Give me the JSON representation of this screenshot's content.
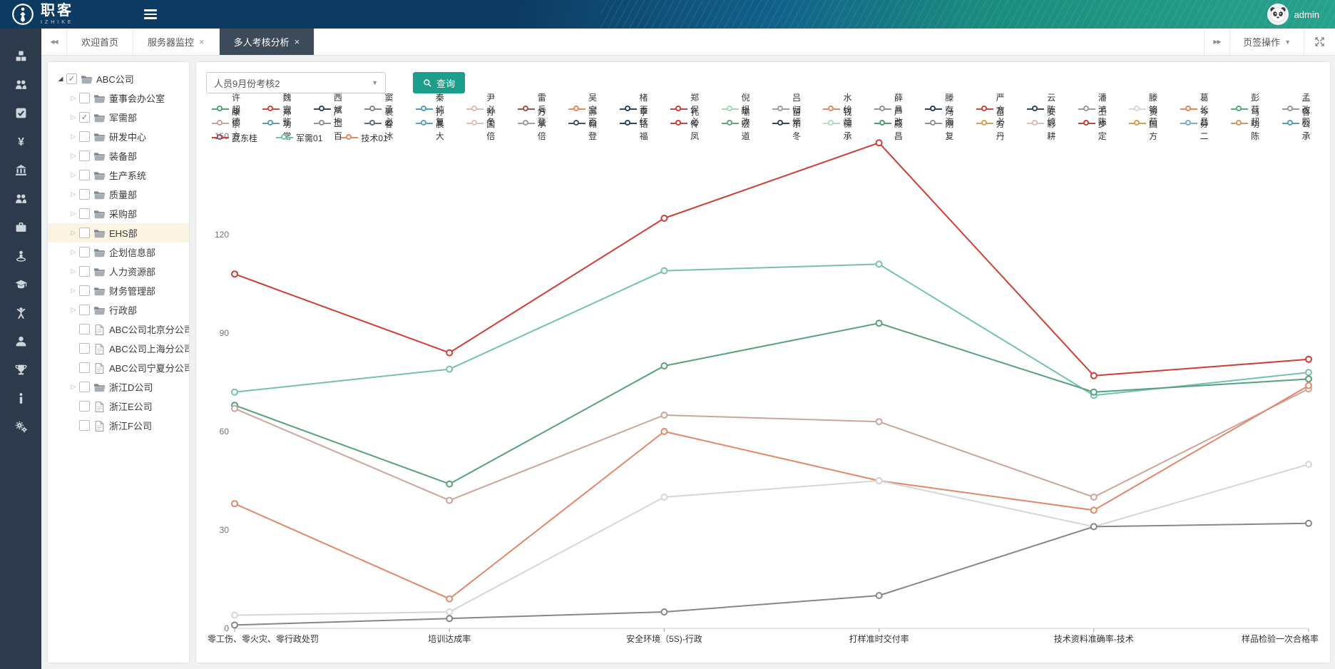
{
  "topbar": {
    "logo_text": "职客",
    "logo_subtext": "IZHIKE",
    "user": "admin"
  },
  "tabbar": {
    "tabs": [
      {
        "label": "欢迎首页",
        "closable": false,
        "active": false
      },
      {
        "label": "服务器监控",
        "closable": true,
        "active": false
      },
      {
        "label": "多人考核分析",
        "closable": true,
        "active": true
      }
    ],
    "actions_label": "页签操作"
  },
  "sidebar": {
    "icons": [
      "cubes",
      "team",
      "check-square",
      "currency-yen",
      "bank",
      "group",
      "briefcase",
      "street-view",
      "graduation-cap",
      "cheer-person",
      "user",
      "trophy",
      "info",
      "gears"
    ]
  },
  "tree": {
    "items": [
      {
        "label": "ABC公司",
        "type": "folder",
        "level": 0,
        "expander": "open",
        "checked": true,
        "highlighted": false
      },
      {
        "label": "董事会办公室",
        "type": "folder",
        "level": 1,
        "expander": "closed",
        "checked": false,
        "highlighted": false
      },
      {
        "label": "军需部",
        "type": "folder",
        "level": 1,
        "expander": "closed",
        "checked": true,
        "highlighted": false
      },
      {
        "label": "研发中心",
        "type": "folder",
        "level": 1,
        "expander": "closed",
        "checked": false,
        "highlighted": false
      },
      {
        "label": "装备部",
        "type": "folder",
        "level": 1,
        "expander": "closed",
        "checked": false,
        "highlighted": false
      },
      {
        "label": "生产系统",
        "type": "folder",
        "level": 1,
        "expander": "closed",
        "checked": false,
        "highlighted": false
      },
      {
        "label": "质量部",
        "type": "folder",
        "level": 1,
        "expander": "closed",
        "checked": false,
        "highlighted": false
      },
      {
        "label": "采购部",
        "type": "folder",
        "level": 1,
        "expander": "closed",
        "checked": false,
        "highlighted": false
      },
      {
        "label": "EHS部",
        "type": "folder",
        "level": 1,
        "expander": "closed",
        "checked": false,
        "highlighted": true
      },
      {
        "label": "企划信息部",
        "type": "folder",
        "level": 1,
        "expander": "closed",
        "checked": false,
        "highlighted": false
      },
      {
        "label": "人力资源部",
        "type": "folder",
        "level": 1,
        "expander": "closed",
        "checked": false,
        "highlighted": false
      },
      {
        "label": "财务管理部",
        "type": "folder",
        "level": 1,
        "expander": "closed",
        "checked": false,
        "highlighted": false
      },
      {
        "label": "行政部",
        "type": "folder",
        "level": 1,
        "expander": "closed",
        "checked": false,
        "highlighted": false
      },
      {
        "label": "ABC公司北京分公司",
        "type": "file",
        "level": 1,
        "expander": "none",
        "checked": false,
        "highlighted": false
      },
      {
        "label": "ABC公司上海分公司",
        "type": "file",
        "level": 1,
        "expander": "none",
        "checked": false,
        "highlighted": false
      },
      {
        "label": "ABC公司宁夏分公司",
        "type": "file",
        "level": 1,
        "expander": "none",
        "checked": false,
        "highlighted": false
      },
      {
        "label": "浙江D公司",
        "type": "folder",
        "level": 1,
        "expander": "closed",
        "checked": false,
        "highlighted": false
      },
      {
        "label": "浙江E公司",
        "type": "file",
        "level": 1,
        "expander": "none",
        "checked": false,
        "highlighted": false
      },
      {
        "label": "浙江F公司",
        "type": "file",
        "level": 1,
        "expander": "none",
        "checked": false,
        "highlighted": false
      }
    ]
  },
  "toolbar": {
    "select_value": "人员9月份考核2",
    "query_label": "查询"
  },
  "chart_data": {
    "type": "line",
    "categories": [
      "零工伤、零火灾、零行政处罚",
      "培训达成率",
      "安全环境（5S)-行政",
      "打样准时交付率",
      "技术资料准确率-技术",
      "样品检验一次合格率"
    ],
    "yticks": [
      0,
      30,
      60,
      90,
      120,
      150
    ],
    "ylim": [
      0,
      150
    ],
    "grid": false,
    "legend_position": "top",
    "legend_rows": [
      [
        {
          "name": "许超德",
          "color": "#55a178"
        },
        {
          "name": "魏富鉴",
          "color": "#c94a43"
        },
        {
          "name": "西斌抱",
          "color": "#31495c"
        },
        {
          "name": "窦承必",
          "color": "#83878d"
        },
        {
          "name": "秦纯复",
          "color": "#4f9fae"
        },
        {
          "name": "尹必冬",
          "color": "#dcbcb4"
        },
        {
          "name": "雷兵登",
          "color": "#a2544e"
        },
        {
          "name": "吴宝百",
          "color": "#e08a62"
        },
        {
          "name": "楮百红",
          "color": "#33495e"
        },
        {
          "name": "郑保必",
          "color": "#c9413a"
        },
        {
          "name": "倪根改",
          "color": "#a8d5b5"
        },
        {
          "name": "吕归炳",
          "color": "#9b9fa4"
        },
        {
          "name": "水纷炳",
          "color": "#e28a66"
        },
        {
          "name": "薛昌改",
          "color": "#8f949a"
        },
        {
          "name": "滕存海",
          "color": "#2e4457"
        },
        {
          "name": "严方必",
          "color": "#cc4540"
        },
        {
          "name": "云陈纯",
          "color": "#304a5e"
        },
        {
          "name": "潘鸿陈",
          "color": "#989da2"
        },
        {
          "name": "滕铬荷",
          "color": "#d3d7da"
        },
        {
          "name": "葛长昌",
          "color": "#e0885a"
        },
        {
          "name": "彭荷超",
          "color": "#5ea87f"
        },
        {
          "name": "孟改殿",
          "color": "#94999f"
        }
      ],
      [
        {
          "name": "康崇方",
          "color": "#cca59a"
        },
        {
          "name": "郑功常",
          "color": "#54a3ad"
        },
        {
          "name": "严二百",
          "color": "#90959b"
        },
        {
          "name": "袁春冰",
          "color": "#5c6e80"
        },
        {
          "name": "孙晨大",
          "color": "#57a6b0"
        },
        {
          "name": "孙国倍",
          "color": "#dec1b9"
        },
        {
          "name": "方承倍",
          "color": "#9ba0a5"
        },
        {
          "name": "郝翰登",
          "color": "#3e5468"
        },
        {
          "name": "李铬福",
          "color": "#2f4759"
        },
        {
          "name": "孔传凤",
          "color": "#cb433c"
        },
        {
          "name": "喻宏道",
          "color": "#5fa97e"
        },
        {
          "name": "苗东冬",
          "color": "#32495c"
        },
        {
          "name": "钱保承",
          "color": "#b5dcc3"
        },
        {
          "name": "严殿昌",
          "color": "#4f9b72"
        },
        {
          "name": "冯刚复",
          "color": "#8e9399"
        },
        {
          "name": "苗方丹",
          "color": "#dda049"
        },
        {
          "name": "安彩耕",
          "color": "#ddc0b8"
        },
        {
          "name": "王步定",
          "color": "#c84039"
        },
        {
          "name": "贺国方",
          "color": "#dd9d47"
        },
        {
          "name": "岑芬二",
          "color": "#6fb3bd"
        },
        {
          "name": "马功陈",
          "color": "#e0925d"
        },
        {
          "name": "鲁公承",
          "color": "#51a2ac"
        }
      ],
      [
        {
          "name": "武东桂",
          "color": "#cd3e36"
        },
        {
          "name": "军需01",
          "color": "#74c2ad"
        },
        {
          "name": "技术01",
          "color": "#e2876a"
        }
      ]
    ],
    "series": [
      {
        "name": "武东桂",
        "color": "#cd3e36",
        "values": [
          108,
          84,
          125,
          148,
          77,
          82
        ]
      },
      {
        "name": "军需01",
        "color": "#74c2ad",
        "values": [
          72,
          79,
          109,
          111,
          71,
          78
        ]
      },
      {
        "name": "许超德",
        "color": "#55a178",
        "values": [
          68,
          44,
          80,
          93,
          72,
          76
        ]
      },
      {
        "name": "康崇方",
        "color": "#cca59a",
        "values": [
          67,
          39,
          65,
          63,
          40,
          73
        ]
      },
      {
        "name": "技术01",
        "color": "#e2876a",
        "values": [
          38,
          9,
          60,
          45,
          36,
          74
        ]
      },
      {
        "name": "滕铬荷",
        "color": "#d3d7da",
        "values": [
          4,
          5,
          40,
          45,
          31,
          50
        ]
      },
      {
        "name": "窦承必",
        "color": "#83878d",
        "values": [
          1,
          3,
          5,
          10,
          31,
          32
        ]
      }
    ]
  }
}
